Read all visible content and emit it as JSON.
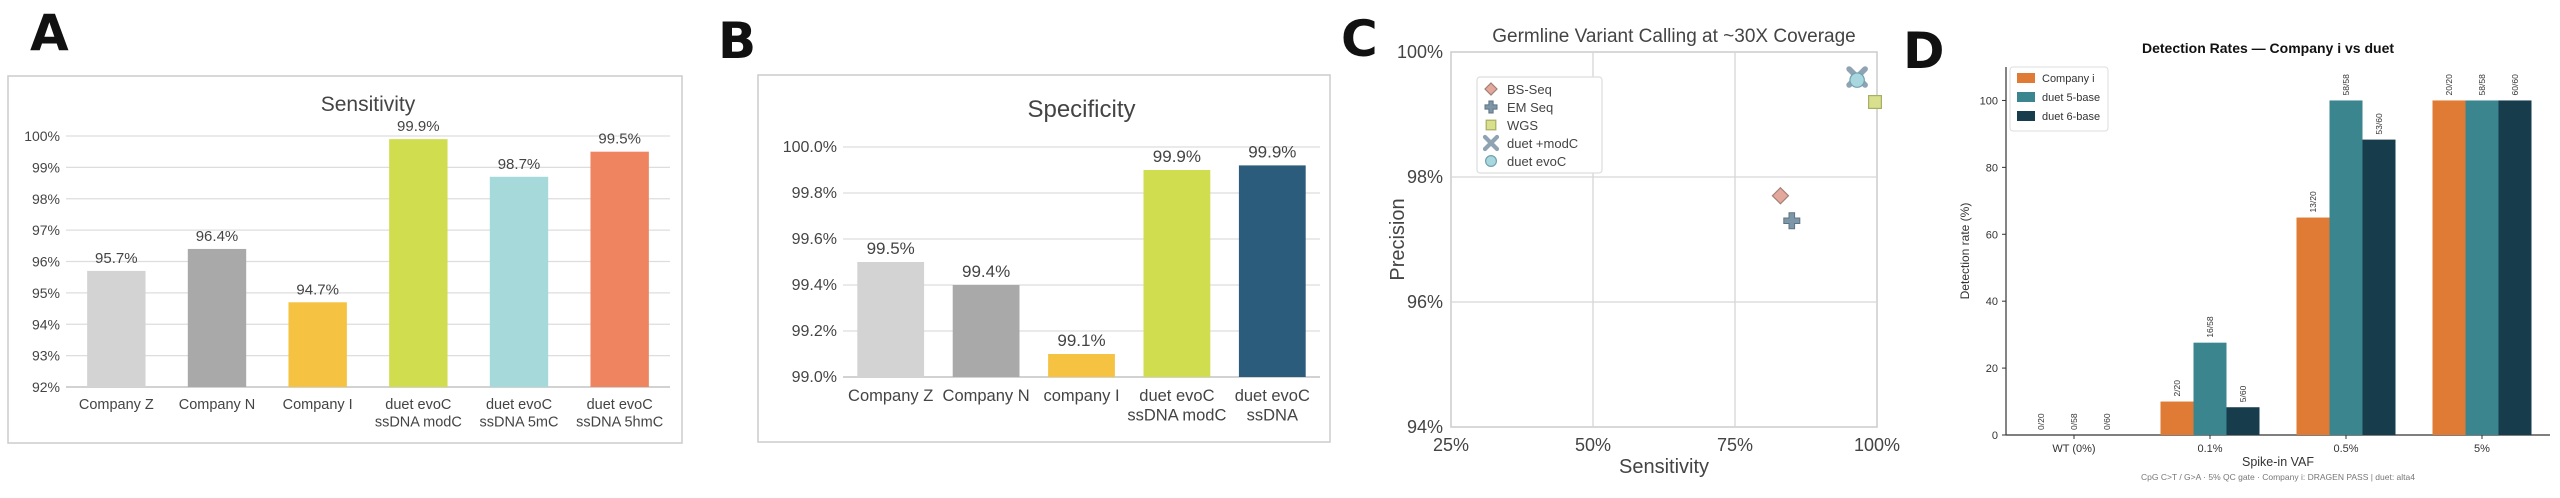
{
  "panel_labels": [
    "A",
    "B",
    "C",
    "D"
  ],
  "chart_data": [
    {
      "type": "bar",
      "title": "Sensitivity",
      "categories": [
        "Company Z",
        "Company N",
        "Company I",
        "duet evoC\nssDNA modC",
        "duet evoC\nssDNA 5mC",
        "duet evoC\nssDNA 5hmC"
      ],
      "values": [
        95.7,
        96.4,
        94.7,
        99.9,
        98.7,
        99.5
      ],
      "data_labels": [
        "95.7%",
        "96.4%",
        "94.7%",
        "99.9%",
        "98.7%",
        "99.5%"
      ],
      "colors": [
        "#d3d3d3",
        "#a9a9a9",
        "#f5c242",
        "#cfdd4f",
        "#a6d9d9",
        "#ee8560"
      ],
      "ylim": [
        92,
        100
      ],
      "yticks": [
        92,
        93,
        94,
        95,
        96,
        97,
        98,
        99,
        100
      ],
      "ytick_labels": [
        "92%",
        "93%",
        "94%",
        "95%",
        "96%",
        "97%",
        "98%",
        "99%",
        "100%"
      ],
      "xlabel": "",
      "ylabel": "",
      "grid": true
    },
    {
      "type": "bar",
      "title": "Specificity",
      "categories": [
        "Company Z",
        "Company N",
        "company I",
        "duet evoC\nssDNA modC",
        "duet evoC\nssDNA"
      ],
      "values": [
        99.5,
        99.4,
        99.1,
        99.9,
        99.92
      ],
      "data_labels": [
        "99.5%",
        "99.4%",
        "99.1%",
        "99.9%",
        "99.9%"
      ],
      "colors": [
        "#d3d3d3",
        "#a9a9a9",
        "#f5c242",
        "#cfdd4f",
        "#2b5c7c"
      ],
      "ylim": [
        99.0,
        100.0
      ],
      "yticks": [
        99.0,
        99.2,
        99.4,
        99.6,
        99.8,
        100.0
      ],
      "ytick_labels": [
        "99.0%",
        "99.2%",
        "99.4%",
        "99.6%",
        "99.8%",
        "100.0%"
      ],
      "xlabel": "",
      "ylabel": "",
      "grid": true
    },
    {
      "type": "scatter",
      "title": "Germline Variant Calling at ~30X Coverage",
      "xlabel": "Sensitivity",
      "ylabel": "Precision",
      "xlim": [
        25,
        100
      ],
      "ylim": [
        94,
        100
      ],
      "xticks": [
        25,
        50,
        75,
        100
      ],
      "xtick_labels": [
        "25%",
        "50%",
        "75%",
        "100%"
      ],
      "yticks": [
        94,
        96,
        98,
        100
      ],
      "ytick_labels": [
        "94%",
        "96%",
        "98%",
        "100%"
      ],
      "legend_position": "top-left",
      "series": [
        {
          "name": "BS-Seq",
          "marker": "diamond",
          "color": "#e3a79b",
          "x": [
            83
          ],
          "y": [
            97.7
          ]
        },
        {
          "name": "EM Seq",
          "marker": "plus",
          "color": "#7e97a8",
          "x": [
            85
          ],
          "y": [
            97.3
          ]
        },
        {
          "name": "WGS",
          "marker": "square",
          "color": "#d8e08e",
          "x": [
            100
          ],
          "y": [
            99.2
          ]
        },
        {
          "name": "duet +modC",
          "marker": "x",
          "color": "#8fa3b3",
          "x": [
            96.5
          ],
          "y": [
            99.6
          ]
        },
        {
          "name": "duet evoC",
          "marker": "circle",
          "color": "#a9d7df",
          "x": [
            96.5
          ],
          "y": [
            99.55
          ]
        }
      ]
    },
    {
      "type": "bar",
      "title": "Detection Rates — Company i vs duet",
      "xlabel": "Spike-in VAF",
      "ylabel": "Detection rate (%)",
      "categories": [
        "WT (0%)",
        "0.1%",
        "0.5%",
        "5%"
      ],
      "ylim": [
        0,
        110
      ],
      "yticks": [
        0,
        20,
        40,
        60,
        80,
        100
      ],
      "legend_position": "top-left",
      "footnote": "CpG C>T / G>A  ·  5% QC gate  ·  Company i: DRAGEN PASS  |  duet: alta4",
      "series": [
        {
          "name": "Company i",
          "color": "#e07b35",
          "values": [
            0,
            10,
            65,
            100
          ],
          "labels": [
            "0/20",
            "2/20",
            "13/20",
            "20/20"
          ]
        },
        {
          "name": "duet 5-base",
          "color": "#3b858e",
          "values": [
            0,
            27.6,
            100,
            100
          ],
          "labels": [
            "0/58",
            "16/58",
            "58/58",
            "58/58"
          ]
        },
        {
          "name": "duet 6-base",
          "color": "#173c4c",
          "values": [
            0,
            8.3,
            88.3,
            100
          ],
          "labels": [
            "0/60",
            "5/60",
            "53/60",
            "60/60"
          ]
        }
      ]
    }
  ]
}
